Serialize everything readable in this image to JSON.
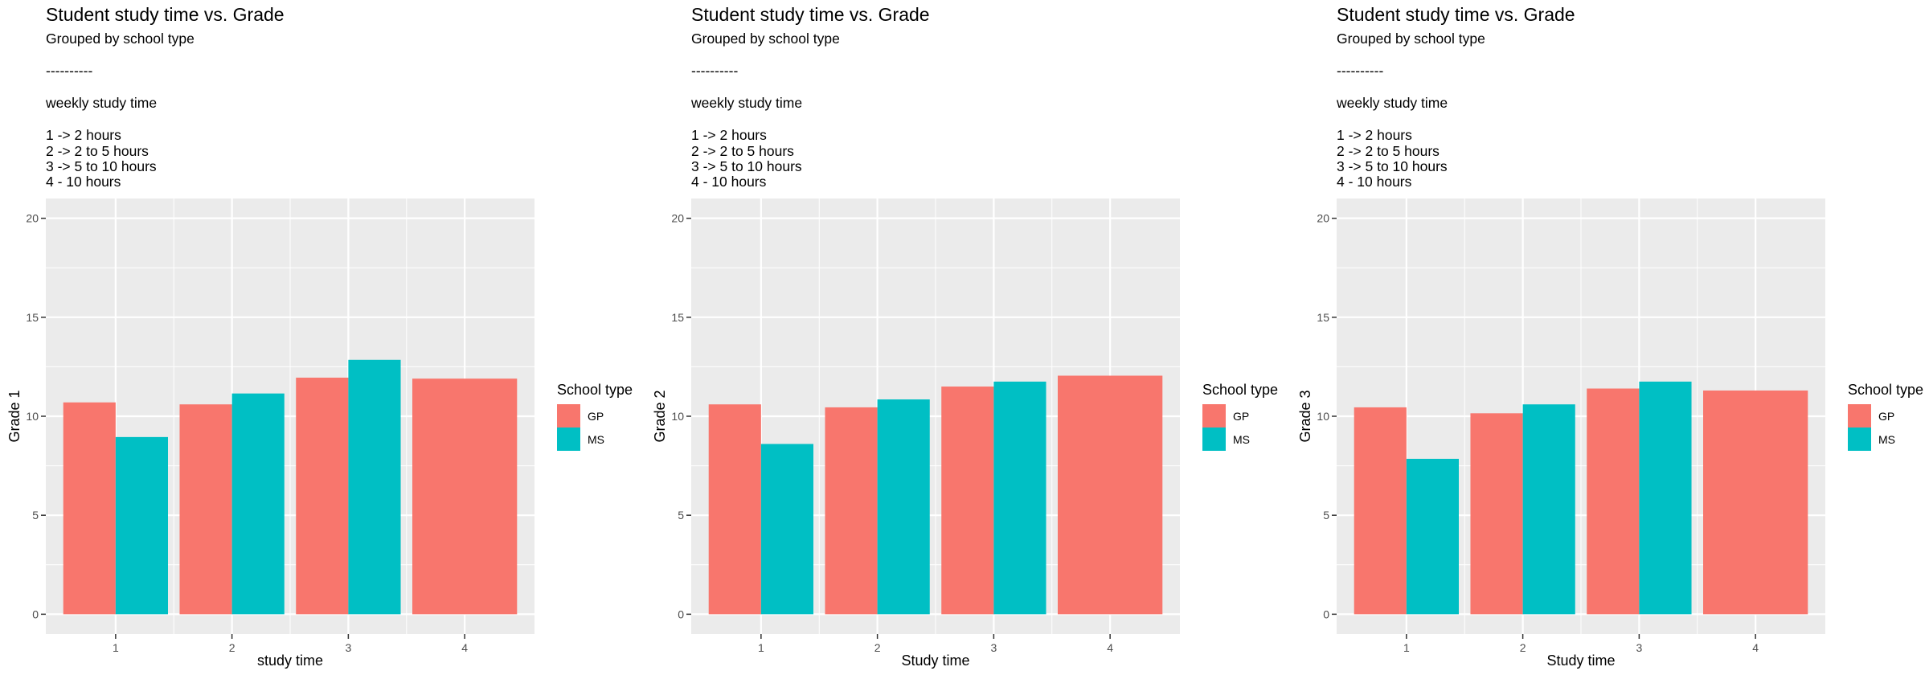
{
  "colors": {
    "GP": "#F8766D",
    "MS": "#00BFC4",
    "panel": "#EBEBEB",
    "grid": "#FFFFFF",
    "axis_text": "#4D4D4D"
  },
  "chart_data": [
    {
      "type": "bar",
      "title": "Student study time vs. Grade",
      "subtitle_lines": [
        "Grouped by school type",
        "",
        "----------",
        "",
        "weekly study time",
        "",
        "1 -> 2 hours",
        "2 -> 2 to 5 hours",
        "3 -> 5 to 10 hours",
        "4 - 10 hours"
      ],
      "xlabel": "study time",
      "ylabel": "Grade 1",
      "ylim": [
        -1,
        21
      ],
      "yticks": [
        0,
        5,
        10,
        15,
        20
      ],
      "categories": [
        "1",
        "2",
        "3",
        "4"
      ],
      "legend": {
        "title": "School type",
        "position": "right"
      },
      "series": [
        {
          "name": "GP",
          "values": [
            10.7,
            10.6,
            11.95,
            11.9
          ]
        },
        {
          "name": "MS",
          "values": [
            8.95,
            11.15,
            12.85,
            null
          ]
        }
      ]
    },
    {
      "type": "bar",
      "title": "Student study time vs. Grade",
      "subtitle_lines": [
        "Grouped by school type",
        "",
        "----------",
        "",
        "weekly study time",
        "",
        "1 -> 2 hours",
        "2 -> 2 to 5 hours",
        "3 -> 5 to 10 hours",
        "4 - 10 hours"
      ],
      "xlabel": "Study time",
      "ylabel": "Grade 2",
      "ylim": [
        -1,
        21
      ],
      "yticks": [
        0,
        5,
        10,
        15,
        20
      ],
      "categories": [
        "1",
        "2",
        "3",
        "4"
      ],
      "legend": {
        "title": "School type",
        "position": "right"
      },
      "series": [
        {
          "name": "GP",
          "values": [
            10.6,
            10.45,
            11.5,
            12.05
          ]
        },
        {
          "name": "MS",
          "values": [
            8.6,
            10.85,
            11.75,
            null
          ]
        }
      ]
    },
    {
      "type": "bar",
      "title": "Student study time vs. Grade",
      "subtitle_lines": [
        "Grouped by school type",
        "",
        "----------",
        "",
        "weekly study time",
        "",
        "1 -> 2 hours",
        "2 -> 2 to 5 hours",
        "3 -> 5 to 10 hours",
        "4 - 10 hours"
      ],
      "xlabel": "Study time",
      "ylabel": "Grade 3",
      "ylim": [
        -1,
        21
      ],
      "yticks": [
        0,
        5,
        10,
        15,
        20
      ],
      "categories": [
        "1",
        "2",
        "3",
        "4"
      ],
      "legend": {
        "title": "School type",
        "position": "right"
      },
      "series": [
        {
          "name": "GP",
          "values": [
            10.45,
            10.15,
            11.4,
            11.3
          ]
        },
        {
          "name": "MS",
          "values": [
            7.85,
            10.6,
            11.75,
            null
          ]
        }
      ]
    }
  ]
}
